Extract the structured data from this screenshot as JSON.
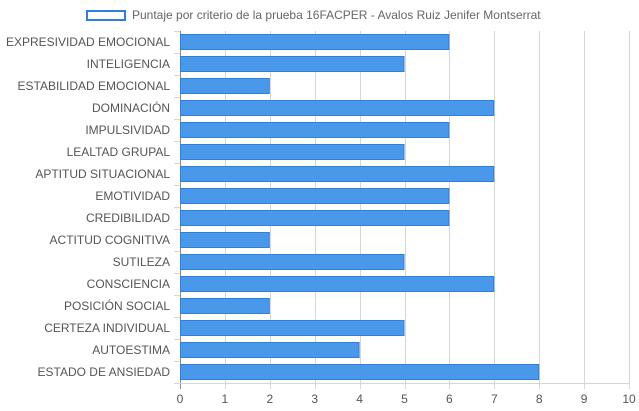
{
  "chart_data": {
    "type": "bar",
    "orientation": "horizontal",
    "title": "",
    "xlabel": "",
    "ylabel": "",
    "xlim": [
      0,
      10
    ],
    "x_ticks": [
      0,
      1,
      2,
      3,
      4,
      5,
      6,
      7,
      8,
      9,
      10
    ],
    "grid": true,
    "legend_position": "top",
    "categories": [
      "EXPRESIVIDAD EMOCIONAL",
      "INTELIGENCIA",
      "ESTABILIDAD EMOCIONAL",
      "DOMINACIÓN",
      "IMPULSIVIDAD",
      "LEALTAD GRUPAL",
      "APTITUD SITUACIONAL",
      "EMOTIVIDAD",
      "CREDIBILIDAD",
      "ACTITUD COGNITIVA",
      "SUTILEZA",
      "CONSCIENCIA",
      "POSICIÓN SOCIAL",
      "CERTEZA INDIVIDUAL",
      "AUTOESTIMA",
      "ESTADO DE ANSIEDAD"
    ],
    "series": [
      {
        "name": "Puntaje por criterio de la prueba 16FACPER - Avalos Ruiz Jenifer Montserrat",
        "values": [
          6,
          5,
          2,
          7,
          6,
          5,
          7,
          6,
          6,
          2,
          5,
          7,
          2,
          5,
          4,
          8
        ]
      }
    ]
  },
  "colors": {
    "bar_fill": "#4a98ea",
    "bar_border": "#2f7fe0",
    "grid": "#d6d6d6",
    "axis": "#8c8c8c",
    "label_text": "#555555"
  }
}
